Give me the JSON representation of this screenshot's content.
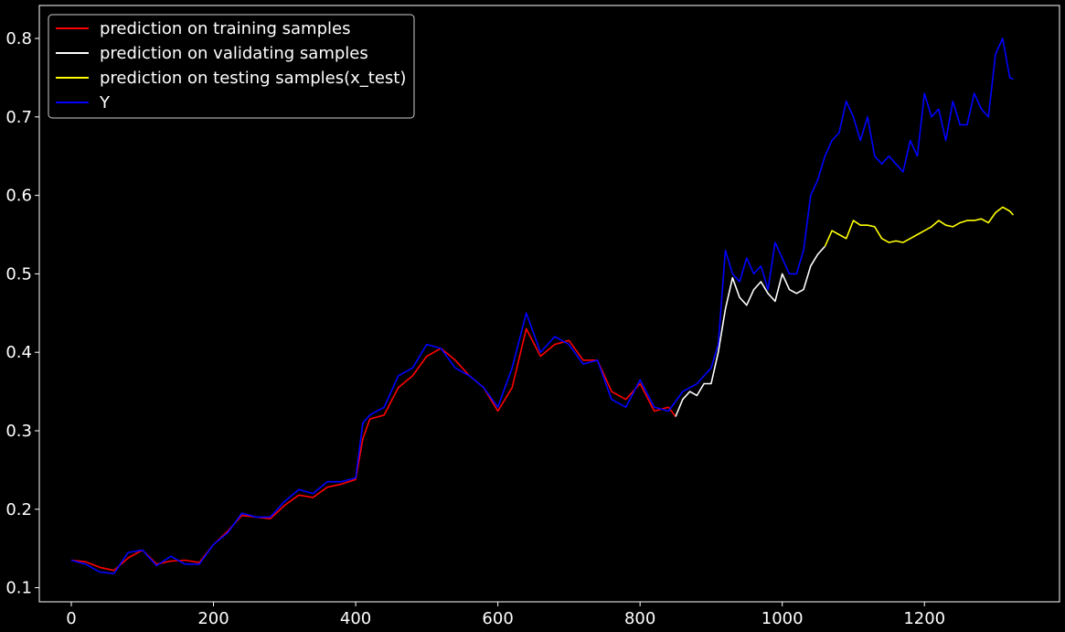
{
  "chart_data": {
    "type": "line",
    "title": "",
    "xlabel": "",
    "ylabel": "",
    "xlim": [
      -45,
      1390
    ],
    "ylim": [
      0.082,
      0.842
    ],
    "xticks": [
      0,
      200,
      400,
      600,
      800,
      1000,
      1200
    ],
    "yticks": [
      0.1,
      0.2,
      0.3,
      0.4,
      0.5,
      0.6,
      0.7,
      0.8
    ],
    "grid": false,
    "legend": "top-left",
    "background": "#000000",
    "series": [
      {
        "name": "prediction on training samples",
        "color": "#ff0000",
        "x": [
          0,
          20,
          40,
          60,
          80,
          100,
          120,
          140,
          160,
          180,
          200,
          220,
          240,
          260,
          280,
          300,
          320,
          340,
          360,
          380,
          400,
          410,
          420,
          440,
          460,
          480,
          500,
          520,
          540,
          560,
          580,
          600,
          620,
          640,
          660,
          680,
          700,
          720,
          740,
          760,
          780,
          800,
          820,
          840,
          850
        ],
        "y": [
          0.135,
          0.133,
          0.126,
          0.122,
          0.138,
          0.148,
          0.13,
          0.134,
          0.135,
          0.132,
          0.155,
          0.172,
          0.192,
          0.19,
          0.188,
          0.205,
          0.218,
          0.215,
          0.228,
          0.232,
          0.238,
          0.29,
          0.315,
          0.32,
          0.355,
          0.37,
          0.395,
          0.405,
          0.39,
          0.37,
          0.355,
          0.325,
          0.355,
          0.43,
          0.395,
          0.41,
          0.415,
          0.39,
          0.39,
          0.35,
          0.34,
          0.36,
          0.325,
          0.33,
          0.318
        ]
      },
      {
        "name": "prediction on validating samples",
        "color": "#ffffff",
        "x": [
          850,
          860,
          870,
          880,
          890,
          900,
          910,
          920,
          930,
          940,
          950,
          960,
          970,
          980,
          990,
          1000,
          1010,
          1020,
          1030,
          1040,
          1050,
          1060
        ],
        "y": [
          0.318,
          0.34,
          0.35,
          0.345,
          0.36,
          0.36,
          0.4,
          0.455,
          0.495,
          0.47,
          0.46,
          0.48,
          0.49,
          0.475,
          0.465,
          0.5,
          0.48,
          0.475,
          0.48,
          0.51,
          0.525,
          0.535
        ]
      },
      {
        "name": "prediction on testing samples(x_test)",
        "color": "#ffff00",
        "x": [
          1060,
          1070,
          1080,
          1090,
          1100,
          1110,
          1120,
          1130,
          1140,
          1150,
          1160,
          1170,
          1180,
          1190,
          1200,
          1210,
          1220,
          1230,
          1240,
          1250,
          1260,
          1270,
          1280,
          1290,
          1300,
          1310,
          1320,
          1325
        ],
        "y": [
          0.535,
          0.555,
          0.55,
          0.545,
          0.568,
          0.562,
          0.562,
          0.56,
          0.545,
          0.54,
          0.542,
          0.54,
          0.545,
          0.55,
          0.555,
          0.56,
          0.568,
          0.562,
          0.56,
          0.565,
          0.568,
          0.568,
          0.57,
          0.565,
          0.578,
          0.585,
          0.58,
          0.575
        ]
      },
      {
        "name": "Y",
        "color": "#0000ff",
        "x": [
          0,
          20,
          40,
          60,
          80,
          100,
          120,
          140,
          160,
          180,
          200,
          220,
          240,
          260,
          280,
          300,
          320,
          340,
          360,
          380,
          400,
          410,
          420,
          440,
          460,
          480,
          500,
          520,
          540,
          560,
          580,
          600,
          620,
          640,
          660,
          680,
          700,
          720,
          740,
          760,
          780,
          800,
          820,
          840,
          860,
          880,
          900,
          910,
          920,
          930,
          940,
          950,
          960,
          970,
          980,
          990,
          1000,
          1010,
          1020,
          1030,
          1040,
          1050,
          1060,
          1070,
          1080,
          1090,
          1100,
          1110,
          1120,
          1130,
          1140,
          1150,
          1160,
          1170,
          1180,
          1190,
          1200,
          1210,
          1220,
          1230,
          1240,
          1250,
          1260,
          1270,
          1280,
          1290,
          1300,
          1310,
          1320,
          1325
        ],
        "y": [
          0.135,
          0.13,
          0.12,
          0.118,
          0.145,
          0.148,
          0.128,
          0.14,
          0.13,
          0.13,
          0.155,
          0.17,
          0.195,
          0.19,
          0.19,
          0.21,
          0.225,
          0.22,
          0.235,
          0.235,
          0.24,
          0.31,
          0.32,
          0.33,
          0.37,
          0.38,
          0.41,
          0.405,
          0.38,
          0.37,
          0.355,
          0.33,
          0.38,
          0.45,
          0.4,
          0.42,
          0.41,
          0.385,
          0.39,
          0.34,
          0.33,
          0.365,
          0.33,
          0.325,
          0.35,
          0.36,
          0.38,
          0.41,
          0.53,
          0.5,
          0.49,
          0.52,
          0.5,
          0.51,
          0.48,
          0.54,
          0.52,
          0.5,
          0.5,
          0.53,
          0.6,
          0.62,
          0.65,
          0.67,
          0.68,
          0.72,
          0.7,
          0.67,
          0.7,
          0.65,
          0.64,
          0.65,
          0.64,
          0.63,
          0.67,
          0.65,
          0.73,
          0.7,
          0.71,
          0.67,
          0.72,
          0.69,
          0.69,
          0.73,
          0.71,
          0.7,
          0.78,
          0.8,
          0.75,
          0.748
        ]
      }
    ]
  }
}
